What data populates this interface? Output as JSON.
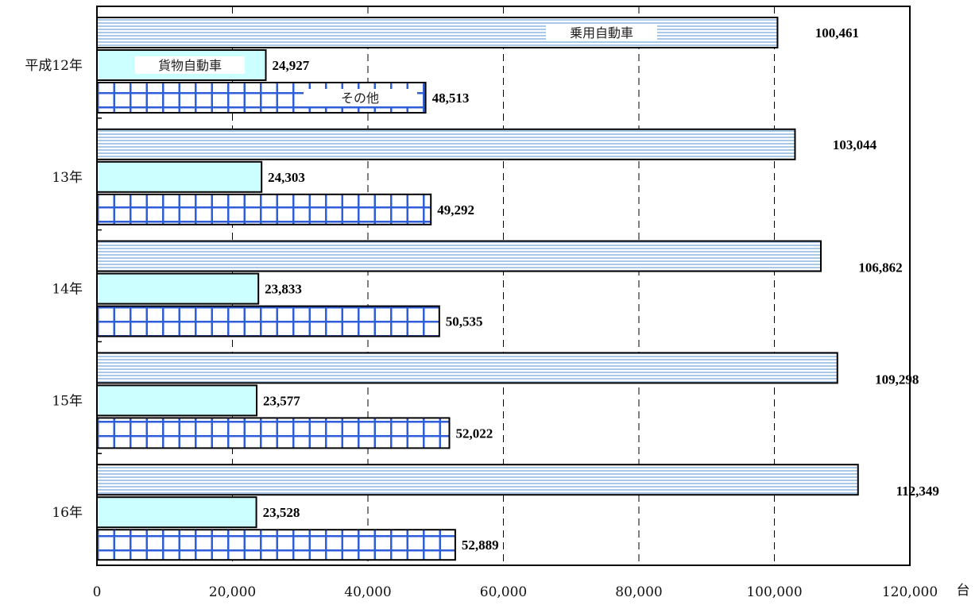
{
  "chart_data": {
    "type": "bar",
    "orientation": "horizontal",
    "categories": [
      "平成12年",
      "13年",
      "14年",
      "15年",
      "16年"
    ],
    "series": [
      {
        "name": "乗用自動車",
        "values": [
          100461,
          103044,
          106862,
          109298,
          112349
        ],
        "color": "#a9c8e8",
        "pattern": "horizontal-stripes"
      },
      {
        "name": "貨物自動車",
        "values": [
          24927,
          24303,
          23833,
          23577,
          23528
        ],
        "color": "#ccffff",
        "pattern": "solid"
      },
      {
        "name": "その他",
        "values": [
          48513,
          49292,
          50535,
          52022,
          52889
        ],
        "color": "#2e5fd8",
        "pattern": "grid"
      }
    ],
    "value_labels": [
      [
        "100,461",
        "103,044",
        "106,862",
        "109,298",
        "112,349"
      ],
      [
        "24,927",
        "24,303",
        "23,833",
        "23,577",
        "23,528"
      ],
      [
        "48,513",
        "49,292",
        "50,535",
        "52,022",
        "52,889"
      ]
    ],
    "xlim": [
      0,
      120000
    ],
    "xticks": [
      0,
      20000,
      40000,
      60000,
      80000,
      100000,
      120000
    ],
    "xtick_labels": [
      "0",
      "20,000",
      "40,000",
      "60,000",
      "80,000",
      "100,000",
      "120,000"
    ],
    "unit": "台",
    "grid": "vertical dashed",
    "legend": "inside bars of first category"
  }
}
